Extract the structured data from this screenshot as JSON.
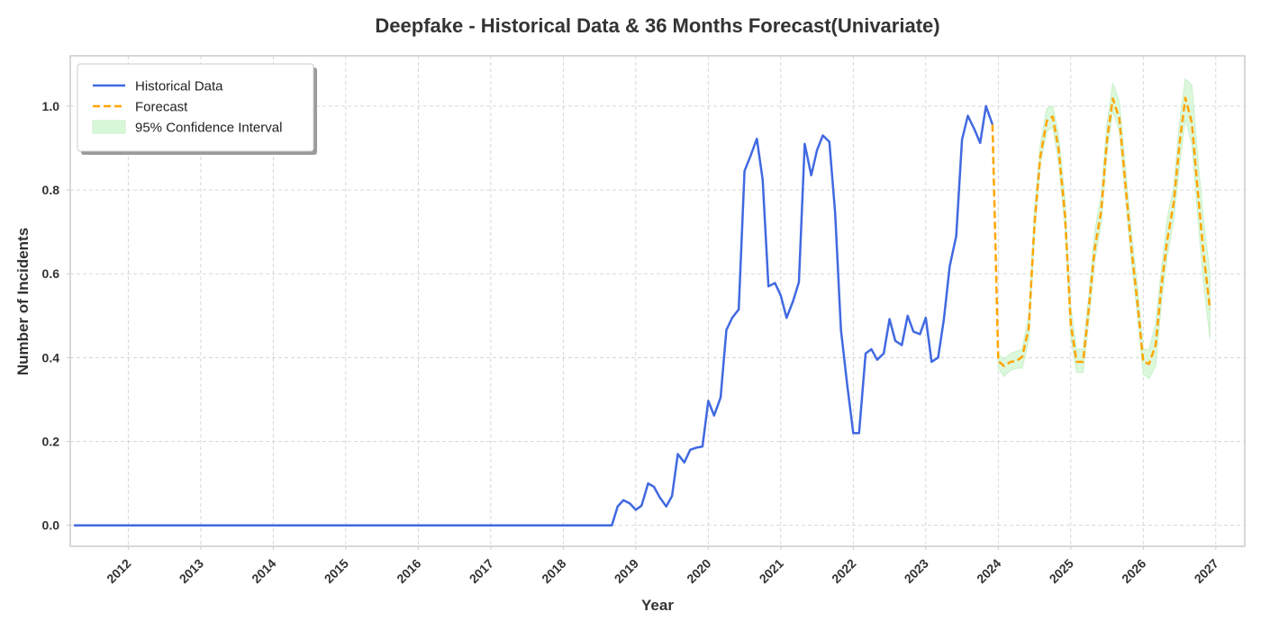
{
  "colors": {
    "historical": "#4169E1",
    "forecast": "#FFA500",
    "ci_fill": "#D8F7D8",
    "ci_stroke": "#C8F0C8",
    "grid": "#D3D3D3",
    "axes_frame": "#CCCCCC",
    "text": "#333333"
  },
  "chart_data": {
    "type": "line",
    "title": "Deepfake - Historical Data & 36 Months Forecast(Univariate)",
    "xlabel": "Year",
    "ylabel": "Number of Incidents",
    "xlim": [
      2011.2,
      2027.4
    ],
    "ylim": [
      -0.05,
      1.12
    ],
    "x_ticks": [
      2012,
      2013,
      2014,
      2015,
      2016,
      2017,
      2018,
      2019,
      2020,
      2021,
      2022,
      2023,
      2024,
      2025,
      2026,
      2027
    ],
    "x_tick_labels": [
      "2012",
      "2013",
      "2014",
      "2015",
      "2016",
      "2017",
      "2018",
      "2019",
      "2020",
      "2021",
      "2022",
      "2023",
      "2024",
      "2025",
      "2026",
      "2027"
    ],
    "y_ticks": [
      0.0,
      0.2,
      0.4,
      0.6,
      0.8,
      1.0
    ],
    "y_tick_labels": [
      "0.0",
      "0.2",
      "0.4",
      "0.6",
      "0.8",
      "1.0"
    ],
    "grid": true,
    "legend_position": "top-left",
    "legend": [
      "Historical Data",
      "Forecast",
      "95% Confidence Interval"
    ],
    "series": [
      {
        "name": "Historical Data",
        "style": "solid",
        "points": [
          [
            2011.25,
            0.0
          ],
          [
            2012.0,
            0.0
          ],
          [
            2013.0,
            0.0
          ],
          [
            2014.0,
            0.0
          ],
          [
            2015.0,
            0.0
          ],
          [
            2016.0,
            0.0
          ],
          [
            2017.0,
            0.0
          ],
          [
            2018.0,
            0.0
          ],
          [
            2018.67,
            0.0
          ],
          [
            2018.75,
            0.045
          ],
          [
            2018.83,
            0.06
          ],
          [
            2018.92,
            0.052
          ],
          [
            2019.0,
            0.037
          ],
          [
            2019.08,
            0.047
          ],
          [
            2019.17,
            0.1
          ],
          [
            2019.25,
            0.092
          ],
          [
            2019.33,
            0.067
          ],
          [
            2019.42,
            0.045
          ],
          [
            2019.5,
            0.07
          ],
          [
            2019.58,
            0.17
          ],
          [
            2019.67,
            0.15
          ],
          [
            2019.75,
            0.18
          ],
          [
            2019.83,
            0.185
          ],
          [
            2019.92,
            0.188
          ],
          [
            2020.0,
            0.297
          ],
          [
            2020.08,
            0.262
          ],
          [
            2020.17,
            0.305
          ],
          [
            2020.25,
            0.466
          ],
          [
            2020.33,
            0.495
          ],
          [
            2020.42,
            0.515
          ],
          [
            2020.5,
            0.845
          ],
          [
            2020.58,
            0.88
          ],
          [
            2020.67,
            0.922
          ],
          [
            2020.75,
            0.825
          ],
          [
            2020.83,
            0.57
          ],
          [
            2020.92,
            0.578
          ],
          [
            2021.0,
            0.548
          ],
          [
            2021.08,
            0.495
          ],
          [
            2021.17,
            0.535
          ],
          [
            2021.25,
            0.58
          ],
          [
            2021.33,
            0.91
          ],
          [
            2021.42,
            0.835
          ],
          [
            2021.5,
            0.895
          ],
          [
            2021.58,
            0.93
          ],
          [
            2021.67,
            0.915
          ],
          [
            2021.75,
            0.745
          ],
          [
            2021.83,
            0.466
          ],
          [
            2021.92,
            0.33
          ],
          [
            2022.0,
            0.22
          ],
          [
            2022.08,
            0.22
          ],
          [
            2022.17,
            0.41
          ],
          [
            2022.25,
            0.42
          ],
          [
            2022.33,
            0.395
          ],
          [
            2022.42,
            0.41
          ],
          [
            2022.5,
            0.492
          ],
          [
            2022.58,
            0.44
          ],
          [
            2022.67,
            0.43
          ],
          [
            2022.75,
            0.5
          ],
          [
            2022.83,
            0.462
          ],
          [
            2022.92,
            0.456
          ],
          [
            2023.0,
            0.495
          ],
          [
            2023.08,
            0.39
          ],
          [
            2023.17,
            0.4
          ],
          [
            2023.25,
            0.492
          ],
          [
            2023.33,
            0.618
          ],
          [
            2023.42,
            0.69
          ],
          [
            2023.5,
            0.92
          ],
          [
            2023.58,
            0.977
          ],
          [
            2023.67,
            0.945
          ],
          [
            2023.75,
            0.912
          ],
          [
            2023.83,
            1.0
          ],
          [
            2023.92,
            0.956
          ]
        ]
      },
      {
        "name": "Forecast",
        "style": "dashed",
        "points": [
          [
            2023.92,
            0.956
          ],
          [
            2024.0,
            0.392
          ],
          [
            2024.08,
            0.38
          ],
          [
            2024.17,
            0.39
          ],
          [
            2024.25,
            0.392
          ],
          [
            2024.33,
            0.402
          ],
          [
            2024.42,
            0.47
          ],
          [
            2024.5,
            0.72
          ],
          [
            2024.58,
            0.88
          ],
          [
            2024.67,
            0.965
          ],
          [
            2024.75,
            0.975
          ],
          [
            2024.83,
            0.9
          ],
          [
            2024.92,
            0.74
          ],
          [
            2025.0,
            0.48
          ],
          [
            2025.08,
            0.39
          ],
          [
            2025.17,
            0.39
          ],
          [
            2025.25,
            0.52
          ],
          [
            2025.33,
            0.66
          ],
          [
            2025.42,
            0.75
          ],
          [
            2025.5,
            0.92
          ],
          [
            2025.58,
            1.018
          ],
          [
            2025.67,
            0.97
          ],
          [
            2025.75,
            0.82
          ],
          [
            2025.83,
            0.67
          ],
          [
            2025.92,
            0.53
          ],
          [
            2026.0,
            0.39
          ],
          [
            2026.08,
            0.385
          ],
          [
            2026.17,
            0.43
          ],
          [
            2026.25,
            0.57
          ],
          [
            2026.33,
            0.68
          ],
          [
            2026.42,
            0.77
          ],
          [
            2026.5,
            0.91
          ],
          [
            2026.58,
            1.02
          ],
          [
            2026.67,
            0.96
          ],
          [
            2026.75,
            0.8
          ],
          [
            2026.83,
            0.65
          ],
          [
            2026.92,
            0.515
          ]
        ]
      }
    ],
    "confidence_interval": {
      "name": "95% Confidence Interval",
      "x": [
        2024.0,
        2024.08,
        2024.17,
        2024.25,
        2024.33,
        2024.42,
        2024.5,
        2024.58,
        2024.67,
        2024.75,
        2024.83,
        2024.92,
        2025.0,
        2025.08,
        2025.17,
        2025.25,
        2025.33,
        2025.42,
        2025.5,
        2025.58,
        2025.67,
        2025.75,
        2025.83,
        2025.92,
        2026.0,
        2026.08,
        2026.17,
        2026.25,
        2026.33,
        2026.42,
        2026.5,
        2026.58,
        2026.67,
        2026.75,
        2026.83,
        2026.92
      ],
      "lower": [
        0.375,
        0.355,
        0.37,
        0.375,
        0.375,
        0.44,
        0.69,
        0.86,
        0.94,
        0.95,
        0.87,
        0.71,
        0.45,
        0.365,
        0.365,
        0.49,
        0.63,
        0.72,
        0.89,
        0.99,
        0.94,
        0.79,
        0.64,
        0.5,
        0.36,
        0.35,
        0.38,
        0.53,
        0.64,
        0.73,
        0.86,
        0.97,
        0.91,
        0.74,
        0.58,
        0.445
      ],
      "upper": [
        0.41,
        0.395,
        0.41,
        0.415,
        0.42,
        0.5,
        0.755,
        0.91,
        0.995,
        1.0,
        0.935,
        0.78,
        0.52,
        0.42,
        0.42,
        0.55,
        0.7,
        0.79,
        0.96,
        1.055,
        1.01,
        0.86,
        0.71,
        0.57,
        0.42,
        0.42,
        0.48,
        0.61,
        0.73,
        0.81,
        0.96,
        1.065,
        1.05,
        0.88,
        0.73,
        0.6
      ]
    }
  }
}
